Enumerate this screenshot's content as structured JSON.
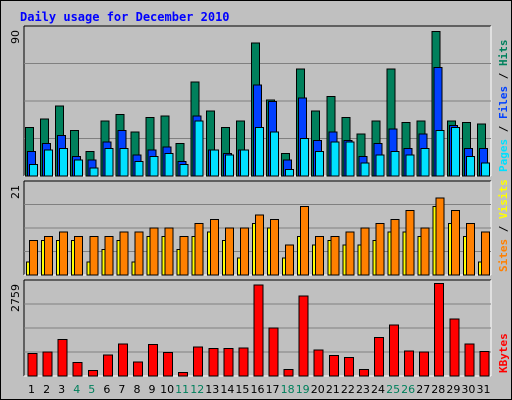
{
  "title": "Daily usage for December 2010",
  "colors": {
    "hits": "#00805c",
    "files": "#0040ff",
    "pages": "#00e0ff",
    "visits": "#ffff00",
    "sites": "#ff8000",
    "kbytes": "#ff0000",
    "weekend_label": "#00805c",
    "weekday_label": "#000000"
  },
  "chart_data": [
    {
      "type": "bar",
      "panel": "hits-files-pages",
      "categories": [
        "1",
        "2",
        "3",
        "4",
        "5",
        "6",
        "7",
        "8",
        "9",
        "10",
        "11",
        "12",
        "13",
        "14",
        "15",
        "16",
        "17",
        "18",
        "19",
        "20",
        "21",
        "22",
        "23",
        "24",
        "25",
        "26",
        "27",
        "28",
        "29",
        "30",
        "31"
      ],
      "max_label": "90",
      "ylim": [
        0,
        90
      ],
      "legend": [
        {
          "name": "Pages",
          "key": "pages"
        },
        {
          "name": "Files",
          "key": "files"
        },
        {
          "name": "Hits",
          "key": "hits"
        }
      ],
      "weekend_days": [
        "4",
        "5",
        "11",
        "12",
        "18",
        "19",
        "25",
        "26"
      ],
      "series": [
        {
          "name": "Hits",
          "key": "hits",
          "values": [
            30,
            35,
            43,
            28,
            15,
            34,
            38,
            27,
            36,
            37,
            20,
            58,
            40,
            30,
            34,
            82,
            47,
            14,
            66,
            40,
            49,
            36,
            26,
            34,
            66,
            33,
            34,
            89,
            34,
            33,
            32
          ]
        },
        {
          "name": "Files",
          "key": "files",
          "values": [
            15,
            20,
            25,
            12,
            10,
            21,
            28,
            13,
            16,
            18,
            9,
            37,
            16,
            14,
            16,
            56,
            46,
            10,
            48,
            22,
            27,
            22,
            12,
            20,
            29,
            17,
            26,
            67,
            31,
            17,
            17
          ]
        },
        {
          "name": "Pages",
          "key": "pages",
          "values": [
            7,
            16,
            17,
            10,
            5,
            17,
            17,
            9,
            12,
            14,
            7,
            34,
            16,
            13,
            16,
            30,
            27,
            4,
            23,
            15,
            21,
            21,
            8,
            13,
            15,
            13,
            17,
            28,
            30,
            12,
            8
          ]
        }
      ]
    },
    {
      "type": "bar",
      "panel": "visits-sites",
      "categories": [
        "1",
        "2",
        "3",
        "4",
        "5",
        "6",
        "7",
        "8",
        "9",
        "10",
        "11",
        "12",
        "13",
        "14",
        "15",
        "16",
        "17",
        "18",
        "19",
        "20",
        "21",
        "22",
        "23",
        "24",
        "25",
        "26",
        "27",
        "28",
        "29",
        "30",
        "31"
      ],
      "max_label": "21",
      "ylim": [
        0,
        21
      ],
      "legend": [
        {
          "name": "Sites",
          "key": "sites"
        },
        {
          "name": "Visits",
          "key": "visits"
        }
      ],
      "series": [
        {
          "name": "Visits",
          "key": "visits",
          "values": [
            3,
            8,
            8,
            8,
            3,
            6,
            8,
            3,
            9,
            9,
            6,
            9,
            10,
            8,
            4,
            12,
            11,
            4,
            9,
            7,
            8,
            7,
            7,
            8,
            10,
            10,
            9,
            16,
            12,
            9,
            3
          ]
        },
        {
          "name": "Sites",
          "key": "sites",
          "values": [
            8,
            9,
            10,
            9,
            9,
            9,
            10,
            10,
            11,
            11,
            9,
            12,
            13,
            11,
            11,
            14,
            13,
            7,
            16,
            9,
            9,
            10,
            11,
            12,
            13,
            15,
            11,
            18,
            15,
            12,
            10
          ]
        }
      ]
    },
    {
      "type": "bar",
      "panel": "kbytes",
      "categories": [
        "1",
        "2",
        "3",
        "4",
        "5",
        "6",
        "7",
        "8",
        "9",
        "10",
        "11",
        "12",
        "13",
        "14",
        "15",
        "16",
        "17",
        "18",
        "19",
        "20",
        "21",
        "22",
        "23",
        "24",
        "25",
        "26",
        "27",
        "28",
        "29",
        "30",
        "31"
      ],
      "max_label": "2759",
      "ylim": [
        0,
        2759
      ],
      "legend": [
        {
          "name": "KBytes",
          "key": "kbytes"
        }
      ],
      "series": [
        {
          "name": "KBytes",
          "key": "kbytes",
          "values": [
            680,
            720,
            1090,
            410,
            170,
            630,
            960,
            420,
            950,
            700,
            110,
            870,
            820,
            830,
            840,
            2730,
            1440,
            200,
            2400,
            780,
            620,
            560,
            200,
            1150,
            1530,
            750,
            720,
            2780,
            1710,
            960,
            740
          ]
        }
      ]
    }
  ]
}
